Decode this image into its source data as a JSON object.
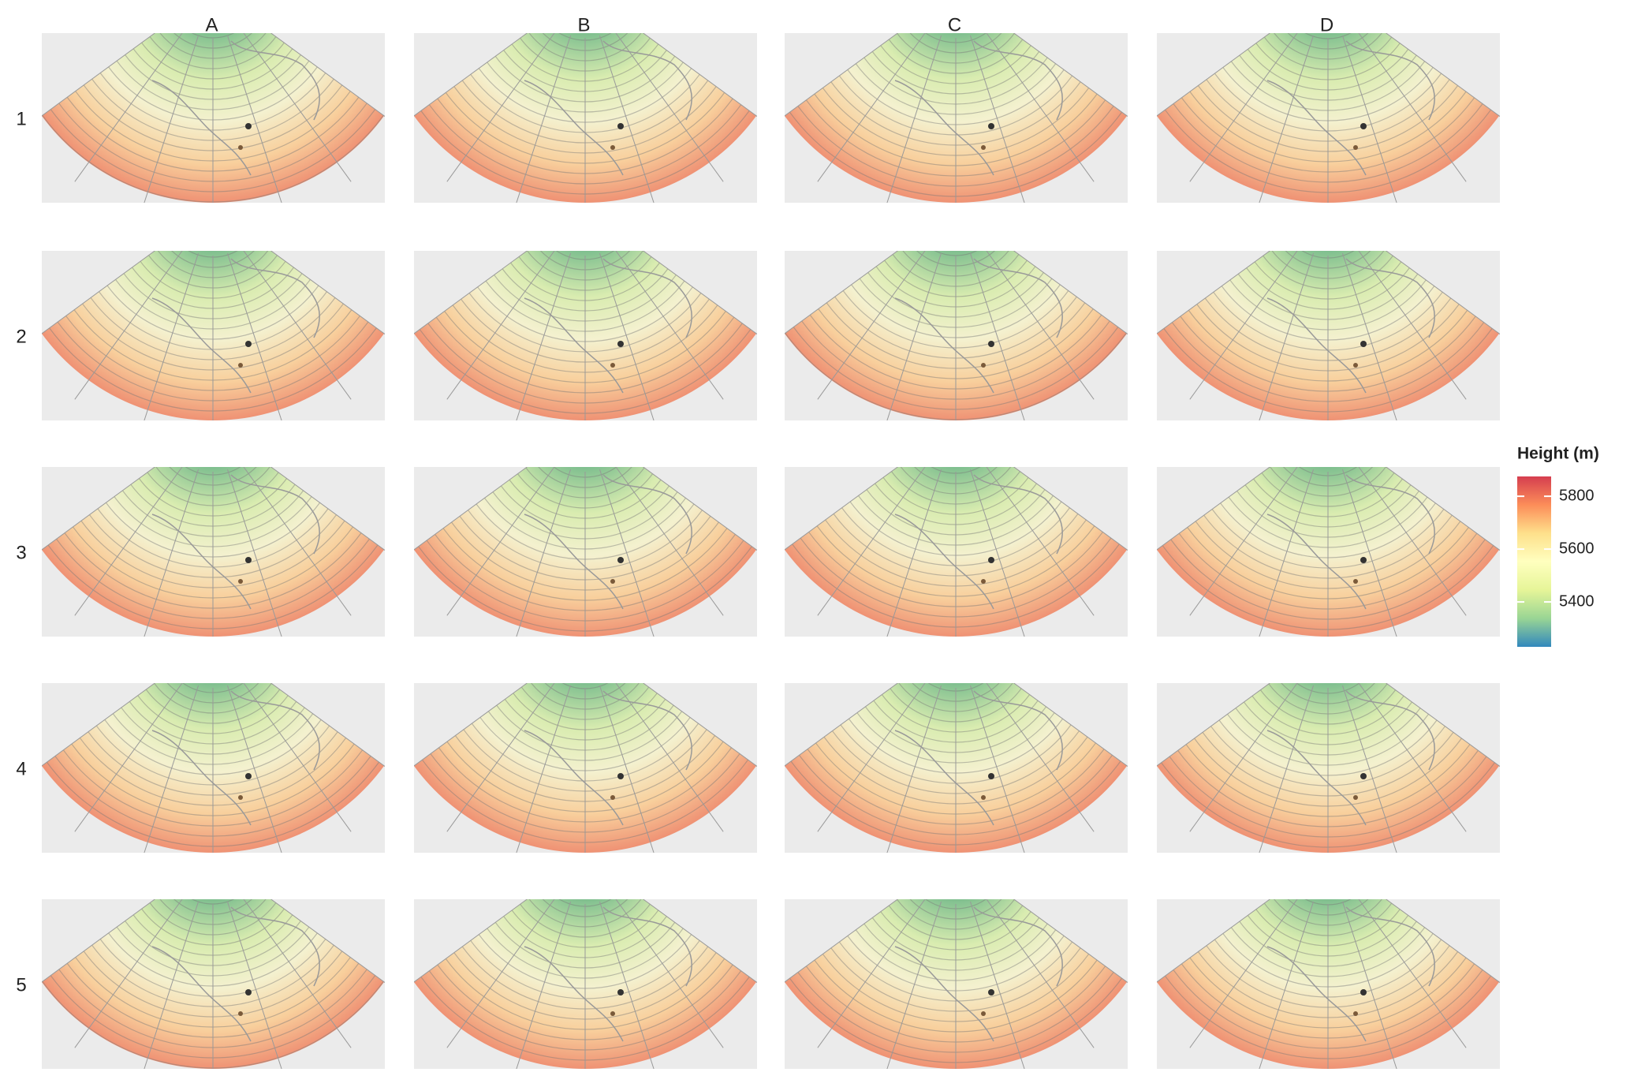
{
  "columns": [
    "A",
    "B",
    "C",
    "D"
  ],
  "rows": [
    "1",
    "2",
    "3",
    "4",
    "5"
  ],
  "legend": {
    "title": "Height (m)",
    "lim": [
      5230,
      5875
    ],
    "ticks": [
      5400,
      5600,
      5800
    ],
    "colors": [
      "#3288bd",
      "#99d594",
      "#e6f598",
      "#ffffbf",
      "#fee08b",
      "#fc8d59",
      "#d53e4f"
    ]
  }
}
